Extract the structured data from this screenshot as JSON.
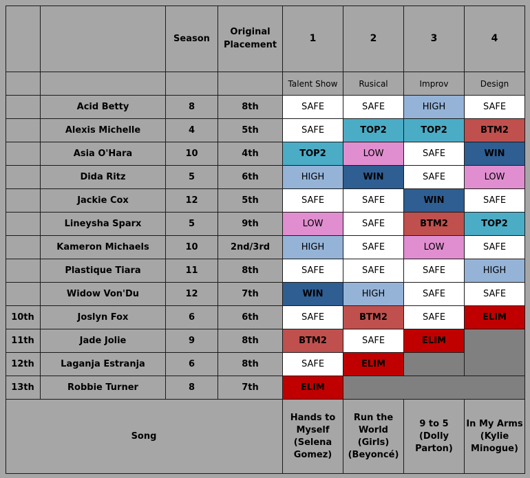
{
  "header": {
    "season": "Season",
    "original_placement": "Original\nPlacement",
    "episodes": [
      "1",
      "2",
      "3",
      "4"
    ],
    "challenges": [
      "Talent Show",
      "Rusical",
      "Improv",
      "Design"
    ]
  },
  "rows": [
    {
      "place": "",
      "name": "Acid Betty",
      "season": "8",
      "orig": "8th",
      "results": [
        "SAFE",
        "SAFE",
        "HIGH",
        "SAFE"
      ]
    },
    {
      "place": "",
      "name": "Alexis Michelle",
      "season": "4",
      "orig": "5th",
      "results": [
        "SAFE",
        "TOP2",
        "TOP2",
        "BTM2"
      ]
    },
    {
      "place": "",
      "name": "Asia O'Hara",
      "season": "10",
      "orig": "4th",
      "results": [
        "TOP2",
        "LOW",
        "SAFE",
        "WIN"
      ]
    },
    {
      "place": "",
      "name": "Dida Ritz",
      "season": "5",
      "orig": "6th",
      "results": [
        "HIGH",
        "WIN",
        "SAFE",
        "LOW"
      ]
    },
    {
      "place": "",
      "name": "Jackie Cox",
      "season": "12",
      "orig": "5th",
      "results": [
        "SAFE",
        "SAFE",
        "WIN",
        "SAFE"
      ]
    },
    {
      "place": "",
      "name": "Lineysha Sparx",
      "season": "5",
      "orig": "9th",
      "results": [
        "LOW",
        "SAFE",
        "BTM2",
        "TOP2"
      ]
    },
    {
      "place": "",
      "name": "Kameron Michaels",
      "season": "10",
      "orig": "2nd/3rd",
      "results": [
        "HIGH",
        "SAFE",
        "LOW",
        "SAFE"
      ]
    },
    {
      "place": "",
      "name": "Plastique Tiara",
      "season": "11",
      "orig": "8th",
      "results": [
        "SAFE",
        "SAFE",
        "SAFE",
        "HIGH"
      ]
    },
    {
      "place": "",
      "name": "Widow Von'Du",
      "season": "12",
      "orig": "7th",
      "results": [
        "WIN",
        "HIGH",
        "SAFE",
        "SAFE"
      ]
    },
    {
      "place": "10th",
      "name": "Joslyn Fox",
      "season": "6",
      "orig": "6th",
      "results": [
        "SAFE",
        "BTM2",
        "SAFE",
        "ELIM"
      ]
    },
    {
      "place": "11th",
      "name": "Jade Jolie",
      "season": "9",
      "orig": "8th",
      "results": [
        "BTM2",
        "SAFE",
        "ELIM"
      ]
    },
    {
      "place": "12th",
      "name": "Laganja Estranja",
      "season": "6",
      "orig": "8th",
      "results": [
        "SAFE",
        "ELIM"
      ]
    },
    {
      "place": "13th",
      "name": "Robbie Turner",
      "season": "8",
      "orig": "7th",
      "results": [
        "ELIM"
      ]
    }
  ],
  "song_label": "Song",
  "songs": [
    "Hands to\nMyself\n(Selena\nGomez)",
    "Run the\nWorld (Girls)\n(Beyoncé)",
    "9 to 5\n(Dolly\nParton)",
    "In My Arms\n(Kylie\nMinogue)"
  ],
  "colors": {
    "WIN": "#2e5e92",
    "TOP2": "#4bacc6",
    "HIGH": "#95b3d7",
    "SAFE": "#ffffff",
    "LOW": "#e08ed0",
    "BTM2": "#c0504d",
    "ELIM": "#c00000",
    "background": "#a6a6a6"
  }
}
